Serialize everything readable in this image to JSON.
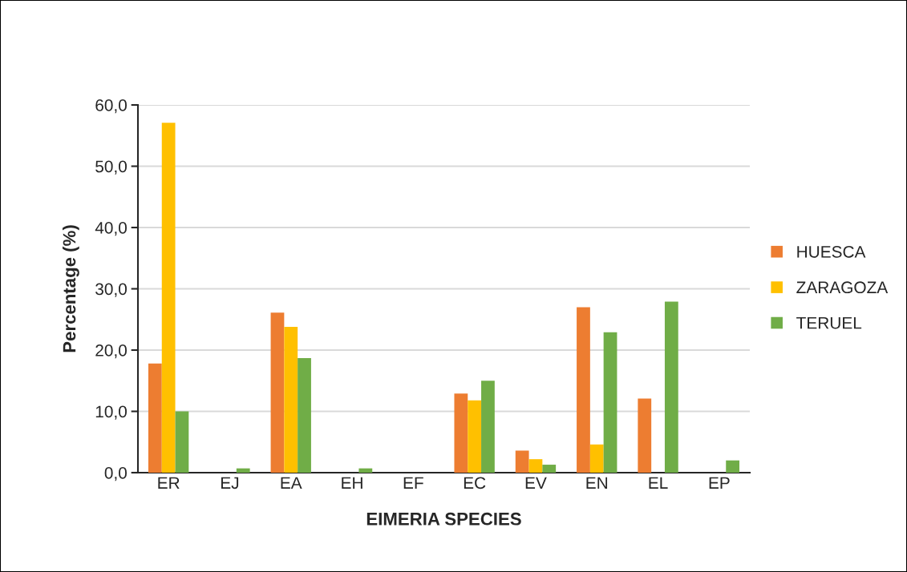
{
  "chart_data": {
    "type": "bar",
    "xlabel": "EIMERIA SPECIES",
    "ylabel": "Percentage (%)",
    "categories": [
      "ER",
      "EJ",
      "EA",
      "EH",
      "EF",
      "EC",
      "EV",
      "EN",
      "EL",
      "EP"
    ],
    "series": [
      {
        "name": "HUESCA",
        "color": "#ed7d31",
        "values": [
          17.8,
          null,
          26.1,
          null,
          null,
          12.9,
          3.6,
          27.0,
          12.1,
          null
        ]
      },
      {
        "name": "ZARAGOZA",
        "color": "#ffc000",
        "values": [
          57.1,
          null,
          23.8,
          null,
          null,
          11.8,
          2.2,
          4.6,
          null,
          null
        ]
      },
      {
        "name": "TERUEL",
        "color": "#70ad47",
        "values": [
          10.0,
          0.7,
          18.7,
          0.7,
          null,
          15.0,
          1.3,
          22.9,
          27.9,
          2.0
        ]
      }
    ],
    "ylim": [
      0,
      60
    ],
    "yticks": [
      {
        "value": 0,
        "label": "0,0"
      },
      {
        "value": 10,
        "label": "10,0"
      },
      {
        "value": 20,
        "label": "20,0"
      },
      {
        "value": 30,
        "label": "30,0"
      },
      {
        "value": 40,
        "label": "40,0"
      },
      {
        "value": 50,
        "label": "50,0"
      },
      {
        "value": 60,
        "label": "60,0"
      }
    ],
    "grid": "y",
    "legend": "right"
  }
}
